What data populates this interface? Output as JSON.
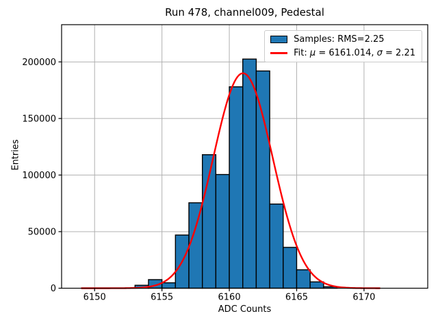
{
  "title": "Run 478, channel009, Pedestal",
  "axes": {
    "xlabel": "ADC Counts",
    "ylabel": "Entries"
  },
  "legend": {
    "samples_label": "Samples: RMS=2.25",
    "fit_prefix": "Fit: ",
    "mu_symbol": "μ",
    "mu_rest": " = 6161.014, ",
    "sigma_symbol": "σ",
    "sigma_rest": " = 2.21"
  },
  "colors": {
    "bar_fill": "#1f77b4",
    "bar_edge": "#000000",
    "fit_line": "#ff0000",
    "grid": "#b0b0b0",
    "spine": "#000000",
    "tick": "#000000",
    "legend_border": "#cccccc"
  },
  "chart_data": {
    "type": "bar",
    "subtype": "histogram",
    "title": "Run 478, channel009, Pedestal",
    "xlabel": "ADC Counts",
    "ylabel": "Entries",
    "bin_edges": [
      6153,
      6154,
      6155,
      6156,
      6157,
      6158,
      6159,
      6160,
      6161,
      6162,
      6163,
      6164,
      6165,
      6166,
      6167,
      6168
    ],
    "counts": [
      2600,
      7600,
      4800,
      47000,
      75500,
      118000,
      100500,
      178000,
      202500,
      192000,
      74400,
      36100,
      16300,
      5600,
      1300
    ],
    "fit_curve": {
      "model": "gaussian",
      "mu": 6161.014,
      "sigma": 2.21,
      "amplitude": 190000,
      "x_start": 6149,
      "x_end": 6171.2
    },
    "stats": {
      "rms": 2.25
    },
    "legend_entries": [
      "Samples: RMS=2.25",
      "Fit: μ = 6161.014, σ = 2.21"
    ],
    "legend_position": "upper right",
    "grid": true,
    "xticks": [
      6150,
      6155,
      6160,
      6165,
      6170
    ],
    "yticks": [
      0,
      50000,
      100000,
      150000,
      200000
    ],
    "xlim": [
      6147.55,
      6174.73
    ],
    "ylim": [
      0,
      232900
    ]
  }
}
